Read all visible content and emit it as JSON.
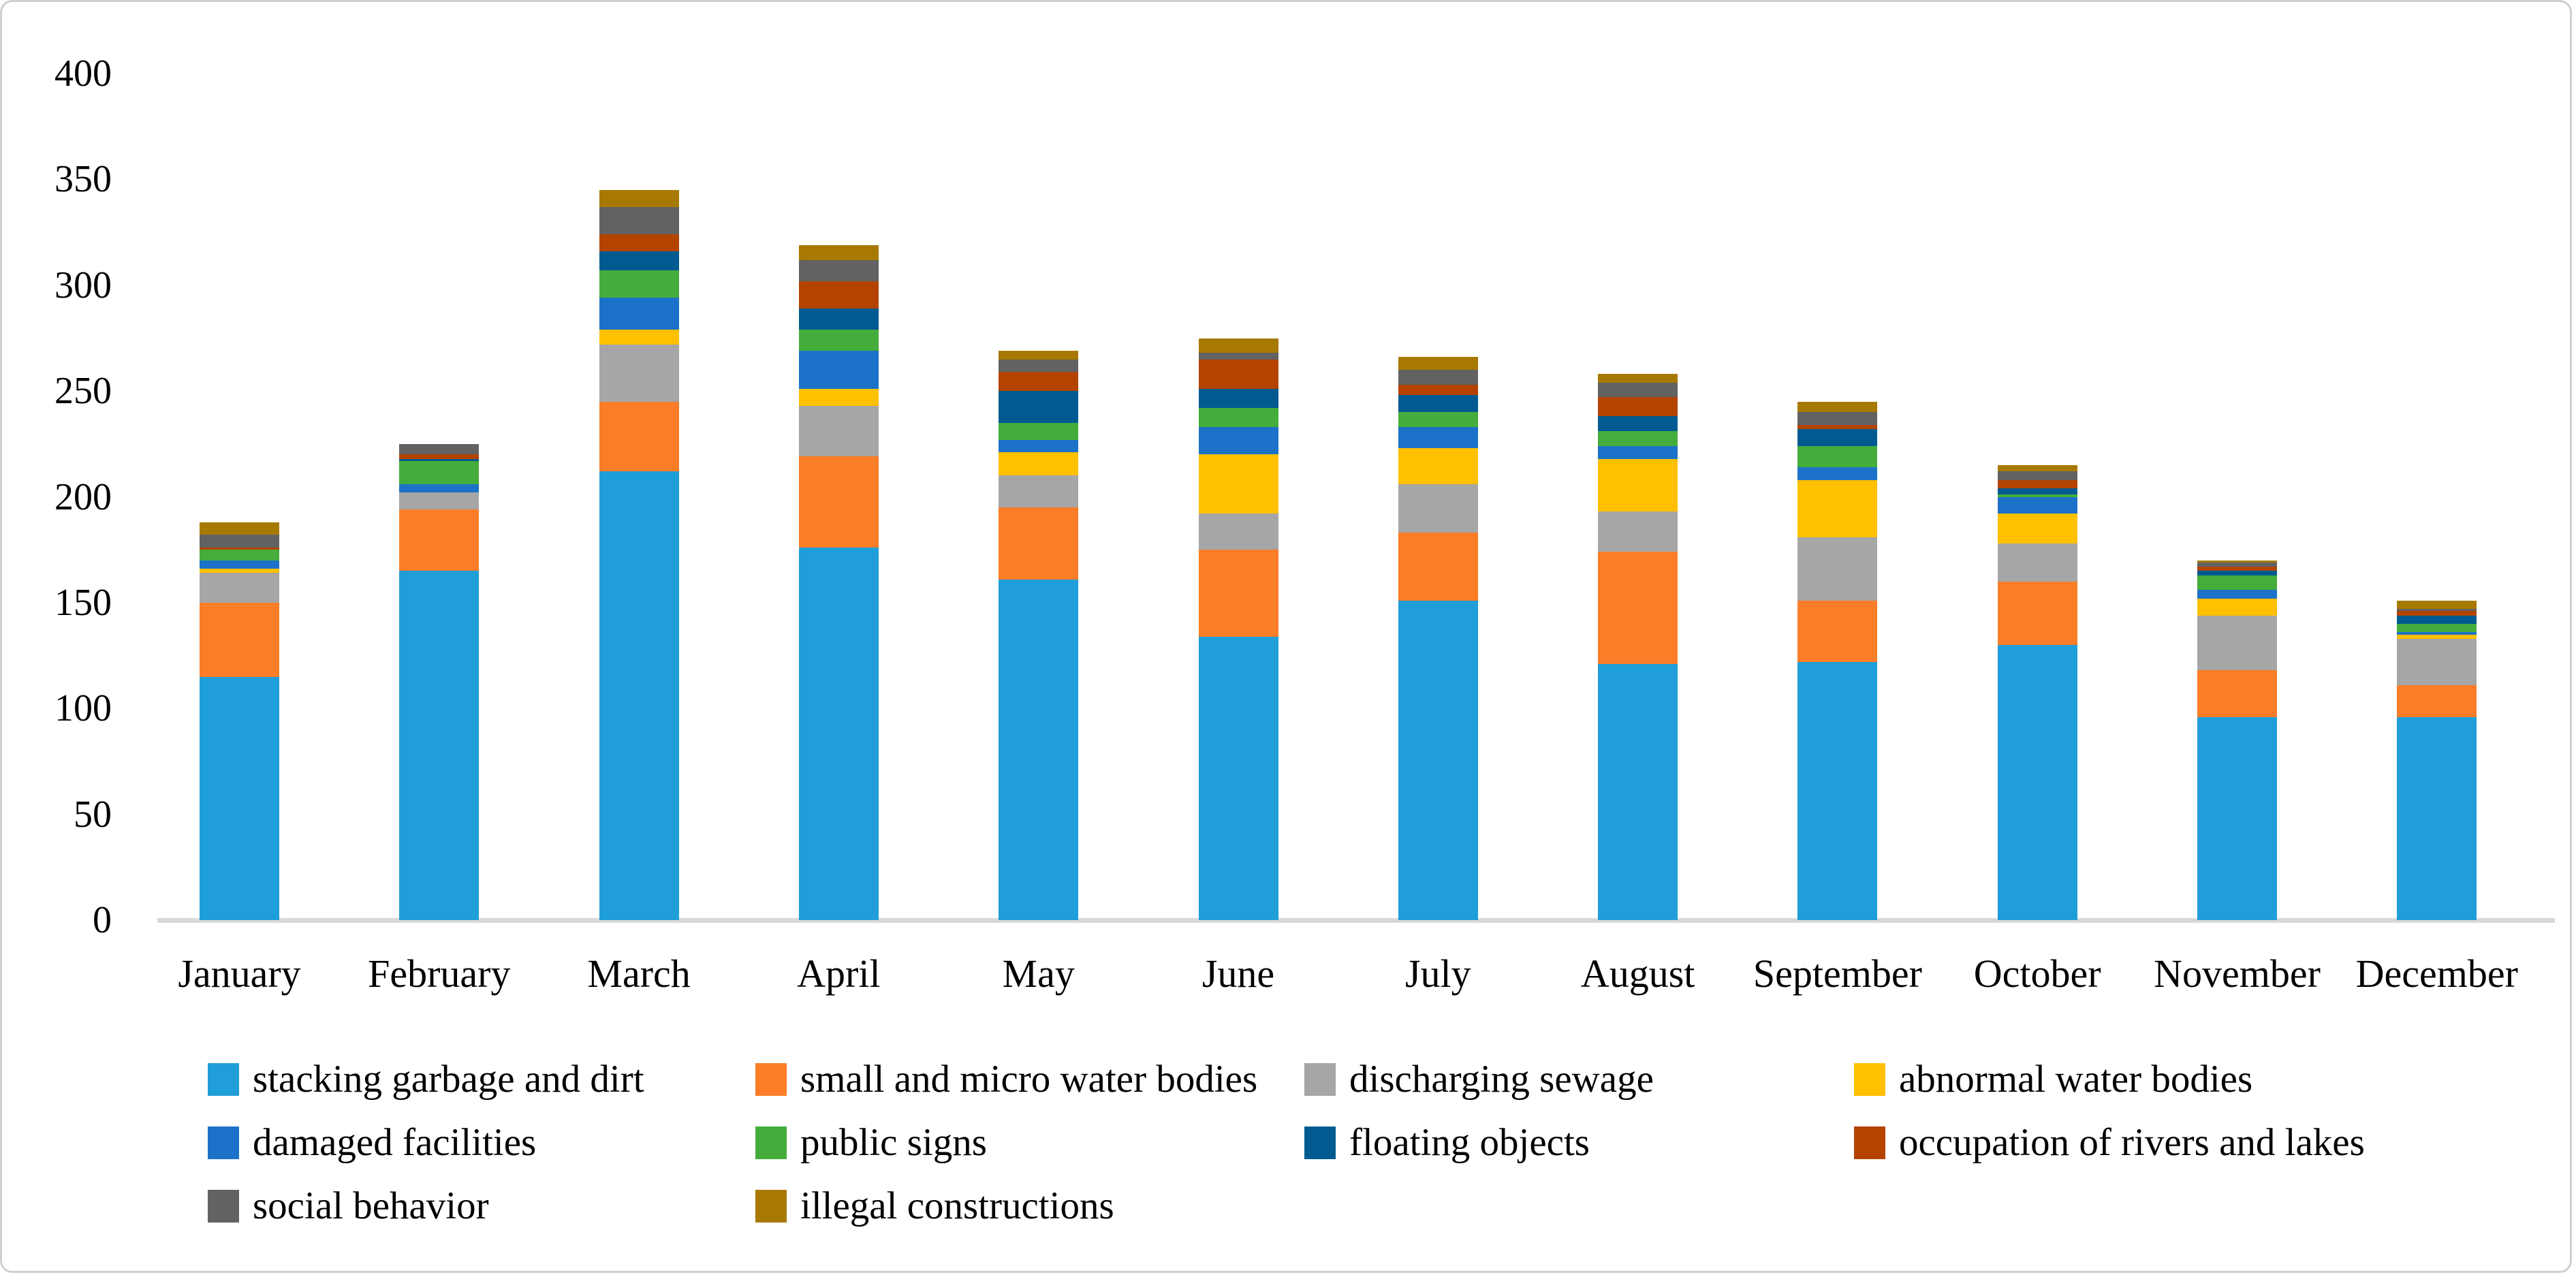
{
  "chart_data": {
    "type": "bar",
    "stacked": true,
    "title": "",
    "xlabel": "",
    "ylabel": "",
    "grid": false,
    "legend_position": "bottom",
    "ylim": [
      0,
      400
    ],
    "ytick_step": 50,
    "yticks": [
      0,
      50,
      100,
      150,
      200,
      250,
      300,
      350,
      400
    ],
    "categories": [
      "January",
      "February",
      "March",
      "April",
      "May",
      "June",
      "July",
      "August",
      "September",
      "October",
      "November",
      "December"
    ],
    "series": [
      {
        "name": "stacking garbage and dirt",
        "color": "#1F9ED9",
        "values": [
          115,
          165,
          212,
          176,
          161,
          134,
          151,
          121,
          122,
          130,
          96,
          96
        ]
      },
      {
        "name": "small and micro water bodies",
        "color": "#FB7D27",
        "values": [
          35,
          29,
          33,
          43,
          34,
          41,
          32,
          53,
          29,
          30,
          22,
          15
        ]
      },
      {
        "name": "discharging sewage",
        "color": "#A6A6A6",
        "values": [
          14,
          8,
          27,
          24,
          15,
          17,
          23,
          19,
          30,
          18,
          26,
          22
        ]
      },
      {
        "name": "abnormal water bodies",
        "color": "#FFC000",
        "values": [
          2,
          0,
          7,
          8,
          11,
          28,
          17,
          25,
          27,
          14,
          8,
          2
        ]
      },
      {
        "name": "damaged facilities",
        "color": "#1B72C8",
        "values": [
          4,
          4,
          15,
          18,
          6,
          13,
          10,
          6,
          6,
          8,
          4,
          1
        ]
      },
      {
        "name": "public signs",
        "color": "#45AD3B",
        "values": [
          5,
          11,
          13,
          10,
          8,
          9,
          7,
          7,
          10,
          1,
          7,
          4
        ]
      },
      {
        "name": "floating objects",
        "color": "#025B90",
        "values": [
          0,
          1,
          9,
          10,
          15,
          9,
          8,
          7,
          8,
          3,
          2,
          4
        ]
      },
      {
        "name": "occupation of rivers and lakes",
        "color": "#B44300",
        "values": [
          1,
          2,
          8,
          13,
          9,
          14,
          5,
          9,
          2,
          4,
          2,
          2
        ]
      },
      {
        "name": "social behavior",
        "color": "#626262",
        "values": [
          6,
          5,
          13,
          10,
          6,
          3,
          7,
          7,
          6,
          4,
          2,
          1
        ]
      },
      {
        "name": "illegal constructions",
        "color": "#A87900",
        "values": [
          6,
          0,
          8,
          7,
          4,
          7,
          6,
          4,
          5,
          3,
          1,
          4
        ]
      }
    ]
  }
}
